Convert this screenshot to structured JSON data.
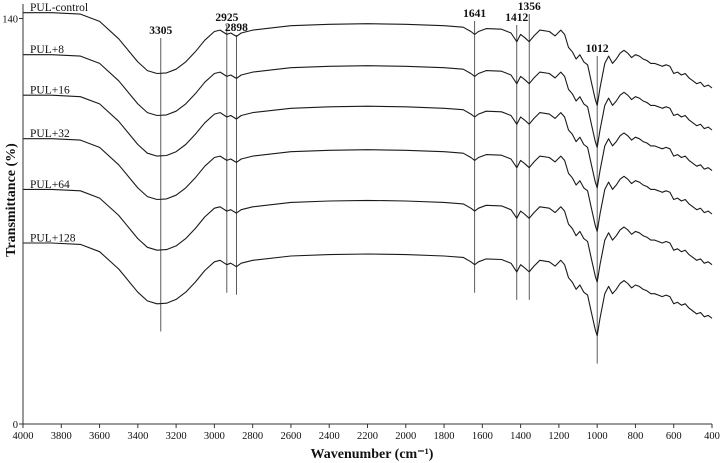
{
  "chart_data": {
    "type": "line",
    "title": "",
    "xlabel": "Wavenumber (cm⁻¹)",
    "ylabel": "Transmittance (%)",
    "xlim": [
      4000,
      400
    ],
    "x_reversed": true,
    "ylim": [
      0,
      145
    ],
    "x_ticks": [
      4000,
      3800,
      3600,
      3400,
      3200,
      3000,
      2800,
      2600,
      2400,
      2200,
      2000,
      1800,
      1600,
      1400,
      1200,
      1000,
      800,
      600,
      400
    ],
    "y_ticks": [
      0,
      140
    ],
    "grid": false,
    "legend": "none",
    "series_style": "stacked FTIR spectra with vertical offsets, labelled at left",
    "peak_markers": [
      {
        "label": "3305",
        "x": 3280
      },
      {
        "label": "2925",
        "x": 2935
      },
      {
        "label": "2898",
        "x": 2885
      },
      {
        "label": "1641",
        "x": 1640
      },
      {
        "label": "1412",
        "x": 1420
      },
      {
        "label": "1356",
        "x": 1355
      },
      {
        "label": "1012",
        "x": 1000
      }
    ],
    "series": [
      {
        "name": "PUL-control",
        "offset": 141.5,
        "x": [
          4000,
          3850,
          3700,
          3600,
          3500,
          3400,
          3350,
          3300,
          3250,
          3200,
          3150,
          3100,
          3050,
          3000,
          2970,
          2935,
          2915,
          2885,
          2860,
          2800,
          2600,
          2400,
          2200,
          2000,
          1800,
          1700,
          1660,
          1640,
          1620,
          1580,
          1500,
          1450,
          1420,
          1400,
          1380,
          1355,
          1330,
          1300,
          1250,
          1220,
          1190,
          1170,
          1150,
          1130,
          1110,
          1090,
          1070,
          1050,
          1030,
          1010,
          1000,
          985,
          960,
          940,
          920,
          900,
          880,
          860,
          840,
          820,
          800,
          780,
          760,
          740,
          720,
          700,
          680,
          660,
          640,
          620,
          600,
          580,
          560,
          540,
          520,
          500,
          480,
          460,
          440,
          420,
          400
        ],
        "y": [
          142.0,
          142.0,
          141.5,
          139.0,
          133.0,
          125.0,
          122.0,
          121.0,
          121.2,
          122.5,
          125.0,
          128.5,
          132.5,
          135.5,
          136.0,
          134.5,
          135.0,
          133.8,
          135.0,
          136.0,
          137.5,
          138.0,
          138.2,
          138.0,
          137.5,
          137.0,
          135.5,
          134.5,
          135.5,
          136.5,
          136.3,
          135.0,
          132.0,
          134.5,
          133.5,
          132.0,
          134.0,
          136.0,
          135.5,
          134.0,
          136.0,
          134.5,
          130.0,
          128.5,
          126.0,
          127.5,
          125.0,
          124.0,
          118.0,
          112.0,
          110.0,
          116.0,
          124.5,
          127.0,
          124.5,
          126.0,
          128.0,
          129.0,
          128.0,
          126.5,
          127.5,
          127.0,
          126.0,
          125.5,
          124.5,
          124.5,
          124.0,
          123.5,
          124.0,
          123.5,
          121.0,
          121.5,
          120.5,
          121.0,
          119.5,
          118.5,
          117.5,
          118.0,
          116.5,
          117.0,
          116.0
        ]
      },
      {
        "name": "PUL+8",
        "offset": 127.0,
        "x": [
          4000,
          3850,
          3700,
          3600,
          3500,
          3400,
          3350,
          3300,
          3250,
          3200,
          3150,
          3100,
          3050,
          3000,
          2970,
          2935,
          2915,
          2885,
          2860,
          2800,
          2600,
          2400,
          2200,
          2000,
          1800,
          1700,
          1660,
          1640,
          1620,
          1580,
          1500,
          1450,
          1420,
          1400,
          1380,
          1355,
          1330,
          1300,
          1250,
          1220,
          1190,
          1170,
          1150,
          1130,
          1110,
          1090,
          1070,
          1050,
          1030,
          1010,
          1000,
          985,
          960,
          940,
          920,
          900,
          880,
          860,
          840,
          820,
          800,
          780,
          760,
          740,
          720,
          700,
          680,
          660,
          640,
          620,
          600,
          580,
          560,
          540,
          520,
          500,
          480,
          460,
          440,
          420,
          400
        ],
        "y": [
          127.5,
          127.5,
          127.0,
          124.5,
          118.5,
          110.5,
          107.5,
          106.5,
          106.7,
          108.0,
          110.5,
          114.0,
          118.0,
          121.0,
          121.5,
          120.0,
          120.5,
          119.3,
          120.5,
          121.5,
          123.0,
          123.5,
          123.7,
          123.5,
          123.0,
          122.5,
          121.0,
          120.0,
          121.0,
          122.0,
          121.8,
          120.5,
          117.5,
          120.0,
          119.0,
          117.5,
          119.5,
          121.5,
          121.0,
          119.5,
          121.5,
          120.0,
          115.5,
          114.0,
          111.5,
          113.0,
          110.5,
          109.5,
          103.5,
          97.5,
          95.5,
          101.5,
          110.0,
          112.5,
          110.0,
          111.5,
          113.5,
          114.5,
          113.5,
          112.0,
          113.0,
          112.5,
          111.5,
          111.0,
          110.0,
          110.0,
          109.5,
          109.0,
          109.5,
          109.0,
          106.5,
          107.0,
          106.0,
          106.5,
          105.0,
          104.0,
          103.0,
          103.5,
          102.0,
          102.5,
          101.5
        ]
      },
      {
        "name": "PUL+16",
        "offset": 113.0,
        "x": [
          4000,
          3850,
          3700,
          3600,
          3500,
          3400,
          3350,
          3300,
          3250,
          3200,
          3150,
          3100,
          3050,
          3000,
          2970,
          2935,
          2915,
          2885,
          2860,
          2800,
          2600,
          2400,
          2200,
          2000,
          1800,
          1700,
          1660,
          1640,
          1620,
          1580,
          1500,
          1450,
          1420,
          1400,
          1380,
          1355,
          1330,
          1300,
          1250,
          1220,
          1190,
          1170,
          1150,
          1130,
          1110,
          1090,
          1070,
          1050,
          1030,
          1010,
          1000,
          985,
          960,
          940,
          920,
          900,
          880,
          860,
          840,
          820,
          800,
          780,
          760,
          740,
          720,
          700,
          680,
          660,
          640,
          620,
          600,
          580,
          560,
          540,
          520,
          500,
          480,
          460,
          440,
          420,
          400
        ],
        "y": [
          113.5,
          113.5,
          113.0,
          110.5,
          104.5,
          96.5,
          93.5,
          92.5,
          92.7,
          94.0,
          96.5,
          100.0,
          104.0,
          107.0,
          107.5,
          106.0,
          106.5,
          105.3,
          106.5,
          107.5,
          109.0,
          109.5,
          109.7,
          109.5,
          109.0,
          108.5,
          107.0,
          106.0,
          107.0,
          108.0,
          107.8,
          106.5,
          103.5,
          106.0,
          105.0,
          103.5,
          105.5,
          107.5,
          107.0,
          105.5,
          107.5,
          106.0,
          101.5,
          100.0,
          97.5,
          99.0,
          96.5,
          95.5,
          89.5,
          83.5,
          81.5,
          87.5,
          96.0,
          98.5,
          96.0,
          97.5,
          99.5,
          100.5,
          99.5,
          98.0,
          99.0,
          98.5,
          97.5,
          97.0,
          96.0,
          96.0,
          95.5,
          95.0,
          95.5,
          95.0,
          92.5,
          93.0,
          92.0,
          92.5,
          91.0,
          90.0,
          89.0,
          89.5,
          88.0,
          88.5,
          87.5
        ]
      },
      {
        "name": "PUL+32",
        "offset": 98.0,
        "x": [
          4000,
          3850,
          3700,
          3600,
          3500,
          3400,
          3350,
          3300,
          3250,
          3200,
          3150,
          3100,
          3050,
          3000,
          2970,
          2935,
          2915,
          2885,
          2860,
          2800,
          2600,
          2400,
          2200,
          2000,
          1800,
          1700,
          1660,
          1640,
          1620,
          1580,
          1500,
          1450,
          1420,
          1400,
          1380,
          1355,
          1330,
          1300,
          1250,
          1220,
          1190,
          1170,
          1150,
          1130,
          1110,
          1090,
          1070,
          1050,
          1030,
          1010,
          1000,
          985,
          960,
          940,
          920,
          900,
          880,
          860,
          840,
          820,
          800,
          780,
          760,
          740,
          720,
          700,
          680,
          660,
          640,
          620,
          600,
          580,
          560,
          540,
          520,
          500,
          480,
          460,
          440,
          420,
          400
        ],
        "y": [
          98.5,
          98.5,
          98.0,
          95.5,
          89.5,
          81.5,
          78.5,
          77.5,
          77.7,
          79.0,
          81.5,
          85.0,
          89.0,
          92.0,
          92.5,
          91.0,
          91.5,
          90.3,
          91.5,
          92.5,
          94.0,
          94.5,
          94.7,
          94.5,
          94.0,
          93.5,
          92.0,
          91.0,
          92.0,
          93.0,
          92.8,
          91.5,
          88.5,
          91.0,
          90.0,
          88.5,
          90.5,
          92.5,
          92.0,
          90.5,
          92.5,
          91.0,
          86.5,
          85.0,
          82.5,
          84.0,
          81.5,
          80.5,
          74.5,
          68.5,
          66.5,
          72.5,
          81.0,
          83.5,
          81.0,
          82.5,
          84.5,
          85.5,
          84.5,
          83.0,
          84.0,
          83.5,
          82.5,
          82.0,
          81.0,
          81.0,
          80.5,
          80.0,
          80.5,
          80.0,
          77.5,
          78.0,
          77.0,
          77.5,
          76.0,
          75.0,
          74.0,
          74.5,
          73.0,
          73.5,
          72.5
        ]
      },
      {
        "name": "PUL+64",
        "offset": 80.5,
        "x": [
          4000,
          3850,
          3700,
          3600,
          3500,
          3400,
          3350,
          3300,
          3250,
          3200,
          3150,
          3100,
          3050,
          3000,
          2970,
          2935,
          2915,
          2885,
          2860,
          2800,
          2600,
          2400,
          2200,
          2000,
          1800,
          1700,
          1660,
          1640,
          1620,
          1580,
          1500,
          1450,
          1420,
          1400,
          1380,
          1355,
          1330,
          1300,
          1250,
          1220,
          1190,
          1170,
          1150,
          1130,
          1110,
          1090,
          1070,
          1050,
          1030,
          1010,
          1000,
          985,
          960,
          940,
          920,
          900,
          880,
          860,
          840,
          820,
          800,
          780,
          760,
          740,
          720,
          700,
          680,
          660,
          640,
          620,
          600,
          580,
          560,
          540,
          520,
          500,
          480,
          460,
          440,
          420,
          400
        ],
        "y": [
          81.0,
          81.0,
          80.5,
          78.0,
          72.0,
          64.0,
          61.0,
          60.0,
          60.2,
          61.5,
          64.0,
          67.5,
          71.5,
          74.5,
          75.0,
          73.5,
          74.0,
          72.8,
          74.0,
          75.0,
          76.5,
          77.0,
          77.2,
          77.0,
          76.5,
          76.0,
          74.5,
          73.5,
          74.5,
          75.5,
          75.3,
          74.0,
          71.0,
          73.5,
          72.5,
          71.0,
          73.0,
          75.0,
          74.5,
          73.0,
          75.0,
          73.5,
          69.0,
          67.5,
          65.0,
          66.5,
          64.0,
          63.0,
          57.0,
          51.0,
          49.0,
          55.0,
          63.5,
          66.0,
          63.5,
          65.0,
          67.0,
          68.0,
          67.0,
          65.5,
          66.5,
          66.0,
          65.0,
          64.5,
          63.5,
          63.5,
          63.0,
          62.5,
          63.0,
          62.5,
          60.0,
          60.5,
          59.5,
          60.0,
          58.5,
          57.5,
          56.5,
          57.0,
          55.5,
          56.0,
          55.0
        ]
      },
      {
        "name": "PUL+128",
        "offset": 62.0,
        "x": [
          4000,
          3850,
          3700,
          3600,
          3500,
          3400,
          3350,
          3300,
          3250,
          3200,
          3150,
          3100,
          3050,
          3000,
          2970,
          2935,
          2915,
          2885,
          2860,
          2800,
          2600,
          2400,
          2200,
          2000,
          1800,
          1700,
          1660,
          1640,
          1620,
          1580,
          1500,
          1450,
          1420,
          1400,
          1380,
          1355,
          1330,
          1300,
          1250,
          1220,
          1190,
          1170,
          1150,
          1130,
          1110,
          1090,
          1070,
          1050,
          1030,
          1010,
          1000,
          985,
          960,
          940,
          920,
          900,
          880,
          860,
          840,
          820,
          800,
          780,
          760,
          740,
          720,
          700,
          680,
          660,
          640,
          620,
          600,
          580,
          560,
          540,
          520,
          500,
          480,
          460,
          440,
          420,
          400
        ],
        "y": [
          62.5,
          62.5,
          62.0,
          59.5,
          53.5,
          45.5,
          42.5,
          41.5,
          41.7,
          43.0,
          45.5,
          49.0,
          53.0,
          56.0,
          56.5,
          55.0,
          55.5,
          54.3,
          55.5,
          56.5,
          58.0,
          58.5,
          58.7,
          58.5,
          58.0,
          57.5,
          56.0,
          55.0,
          56.0,
          57.0,
          56.8,
          55.5,
          52.5,
          55.0,
          54.0,
          52.5,
          54.5,
          56.5,
          56.0,
          54.5,
          56.5,
          55.0,
          50.5,
          49.0,
          46.5,
          48.0,
          45.5,
          44.5,
          38.5,
          32.5,
          30.5,
          36.5,
          45.0,
          47.5,
          45.0,
          46.5,
          48.5,
          49.5,
          48.5,
          47.0,
          48.0,
          47.5,
          46.5,
          46.0,
          45.0,
          45.0,
          44.5,
          44.0,
          44.5,
          44.0,
          41.5,
          42.0,
          41.0,
          41.5,
          40.0,
          39.0,
          38.0,
          38.5,
          37.0,
          37.5,
          36.5
        ]
      }
    ]
  }
}
